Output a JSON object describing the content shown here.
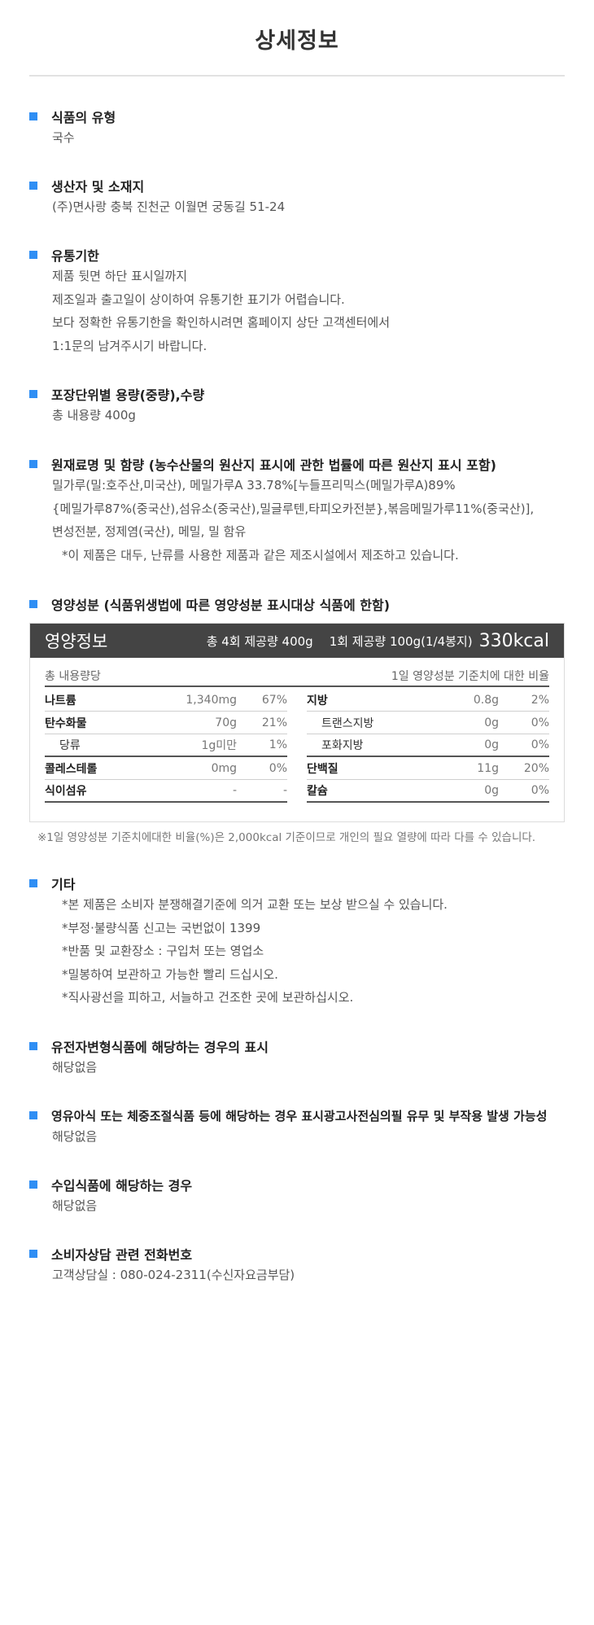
{
  "page_title": "상세정보",
  "colors": {
    "bullet": "#2f8ef4",
    "header_bg": "#444444"
  },
  "sections": {
    "type": {
      "title": "식품의 유형",
      "lines": [
        "국수"
      ]
    },
    "producer": {
      "title": "생산자 및 소재지",
      "lines": [
        "(주)면사랑  충북 진천군 이월면 궁동길 51-24"
      ]
    },
    "expiry": {
      "title": "유통기한",
      "lines": [
        "제품 뒷면 하단 표시일까지",
        "제조일과 출고일이 상이하여 유통기한 표기가 어렵습니다.",
        "보다 정확한 유통기한을 확인하시려면 홈페이지 상단 고객센터에서",
        "1:1문의 남겨주시기 바랍니다."
      ]
    },
    "capacity": {
      "title": "포장단위별 용량(중량),수량",
      "lines": [
        "총 내용량 400g"
      ]
    },
    "ingredients": {
      "title": "원재료명 및 함량 (농수산물의 원산지 표시에 관한 법률에 따른 원산지 표시 포함)",
      "lines": [
        "밀가루(밀:호주산,미국산), 메밀가루A 33.78%[누들프리믹스(메밀가루A)89%",
        "{메밀가루87%(중국산),섬유소(중국산),밀글루텐,타피오카전분},볶음메밀가루11%(중국산)],",
        "변성전분, 정제염(국산), 메밀, 밀 함유"
      ],
      "note": "*이 제품은 대두, 난류를 사용한 제품과 같은 제조시설에서 제조하고 있습니다."
    },
    "nutrition": {
      "title": "영양성분 (식품위생법에 따른 영양성분 표시대상 식품에 한함)"
    },
    "etc": {
      "title": "기타",
      "lines": [
        "*본 제품은 소비자 분쟁해결기준에 의거 교환 또는 보상 받으실 수 있습니다.",
        "*부정·불량식품 신고는 국번없이 1399",
        "*반품 및 교환장소 : 구입처 또는 영업소",
        "*밀봉하여 보관하고 가능한 빨리 드십시오.",
        "*직사광선을 피하고, 서늘하고 건조한 곳에 보관하십시오."
      ]
    },
    "gmo": {
      "title": "유전자변형식품에 해당하는 경우의 표시",
      "lines": [
        "해당없음"
      ]
    },
    "infant": {
      "title": "영유아식 또는 체중조절식품 등에 해당하는 경우 표시광고사전심의필 유무 및 부작용 발생 가능성",
      "lines": [
        "해당없음"
      ]
    },
    "import": {
      "title": "수입식품에 해당하는 경우",
      "lines": [
        "해당없음"
      ]
    },
    "consumer": {
      "title": "소비자상담 관련 전화번호",
      "lines": [
        "고객상담실 : 080-024-2311(수신자요금부담)"
      ]
    }
  },
  "nutrition_table": {
    "header_title": "영양정보",
    "servings_total": "총 4회 제공량 400g",
    "serving_size": "1회 제공량 100g(1/4봉지)",
    "kcal": "330kcal",
    "sub_left": "총 내용량당",
    "sub_right": "1일 영양성분 기준치에 대한 비율",
    "left": [
      {
        "name": "나트륨",
        "value": "1,340mg",
        "pct": "67%"
      },
      {
        "name": "탄수화물",
        "value": "70g",
        "pct": "21%"
      },
      {
        "name": "당류",
        "value": "1g미만",
        "pct": "1%"
      },
      {
        "name": "콜레스테롤",
        "value": "0mg",
        "pct": "0%"
      },
      {
        "name": "식이섬유",
        "value": "-",
        "pct": "-"
      }
    ],
    "right": [
      {
        "name": "지방",
        "value": "0.8g",
        "pct": "2%"
      },
      {
        "name": "트랜스지방",
        "value": "0g",
        "pct": "0%"
      },
      {
        "name": "포화지방",
        "value": "0g",
        "pct": "0%"
      },
      {
        "name": "단백질",
        "value": "11g",
        "pct": "20%"
      },
      {
        "name": "칼슘",
        "value": "0g",
        "pct": "0%"
      }
    ],
    "footnote": "※1일 영양성분 기준치에대한 비율(%)은 2,000kcal 기준이므로 개인의 필요 열량에 따라 다를 수 있습니다."
  }
}
